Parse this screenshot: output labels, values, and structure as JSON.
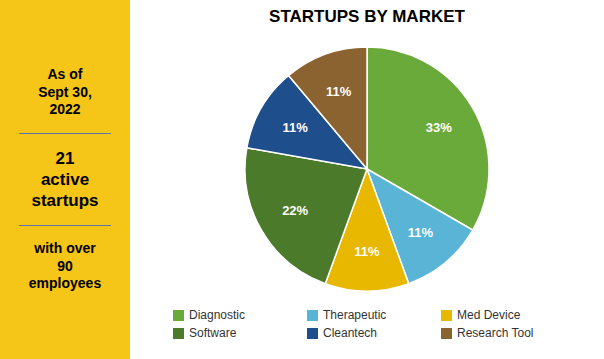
{
  "chart_data": {
    "type": "pie",
    "title": "STARTUPS BY MARKET",
    "categories": [
      "Diagnostic",
      "Therapeutic",
      "Med Device",
      "Software",
      "Cleantech",
      "Research Tool"
    ],
    "values": [
      33,
      11,
      11,
      22,
      11,
      11
    ],
    "value_labels": [
      "33%",
      "11%",
      "11%",
      "22%",
      "11%",
      "11%"
    ],
    "colors": [
      "#6aaa3a",
      "#5ab4d6",
      "#e8b800",
      "#4a7a2a",
      "#1f4e8c",
      "#8b6330"
    ],
    "data_labels": true,
    "legend": "bottom",
    "annotations": [
      "As of\nSept 30,\n2022",
      "21\nactive\nstartups",
      "with over\n90\nemployees"
    ]
  }
}
